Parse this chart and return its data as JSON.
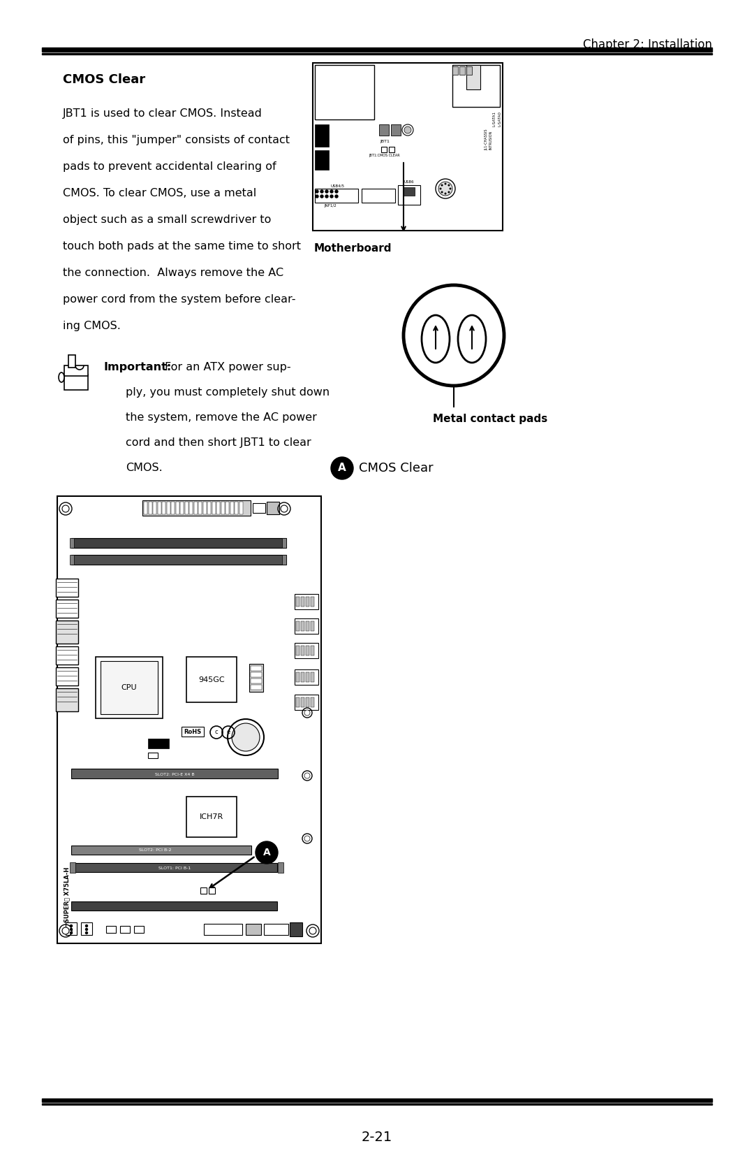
{
  "page_title": "Chapter 2: Installation",
  "page_number": "2-21",
  "section_title": "CMOS Clear",
  "body_text_lines": [
    "JBT1 is used to clear CMOS. Instead",
    "of pins, this \"jumper\" consists of contact",
    "pads to prevent accidental clearing of",
    "CMOS. To clear CMOS, use a metal",
    "object such as a small screwdriver to",
    "touch both pads at the same time to short",
    "the connection.  Always remove the AC",
    "power cord from the system before clear-",
    "ing CMOS."
  ],
  "important_text_lines": [
    "For an ATX power sup-",
    "ply, you must completely shut down",
    "the system, remove the AC power",
    "cord and then short JBT1 to clear",
    "CMOS."
  ],
  "motherboard_label": "Motherboard",
  "metal_pads_label": "Metal contact pads",
  "cmos_clear_label": "CMOS Clear",
  "bg_color": "#ffffff",
  "text_color": "#000000"
}
